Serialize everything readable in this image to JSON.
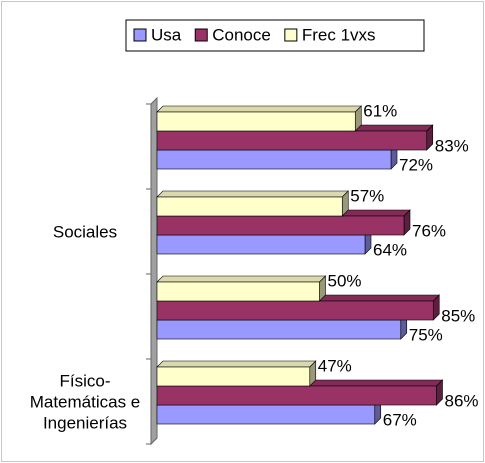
{
  "chart_data": {
    "type": "bar3d_horizontal",
    "categories": [
      null,
      "Sociales",
      null,
      "Físico-Matemáticas e Ingenierías"
    ],
    "series": [
      {
        "name": "Usa",
        "color": "#9999ff",
        "values": [
          72,
          64,
          75,
          67
        ],
        "value_labels": [
          "72%",
          "64%",
          "75%",
          "67%"
        ]
      },
      {
        "name": "Conoce",
        "color": "#993366",
        "values": [
          83,
          76,
          85,
          86
        ],
        "value_labels": [
          "83%",
          "76%",
          "85%",
          "86%"
        ]
      },
      {
        "name": "Frec 1vxs",
        "color": "#ffffcc",
        "values": [
          61,
          57,
          50,
          47
        ],
        "value_labels": [
          "61%",
          "57%",
          "50%",
          "47%"
        ]
      }
    ],
    "legend": "top"
  }
}
